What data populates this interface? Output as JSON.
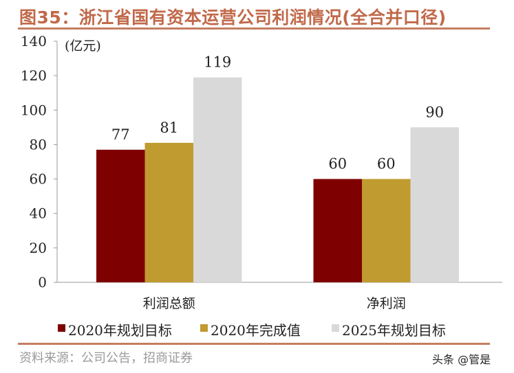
{
  "title": "图35：浙江省国有资本运营公司利润情况(全合并口径)",
  "source": "资料来源：公司公告，招商证券",
  "watermark": "头条 @管是",
  "chart_data": {
    "type": "bar",
    "title": "图35：浙江省国有资本运营公司利润情况(全合并口径)",
    "ylabel": "(亿元)",
    "ylim": [
      0,
      140
    ],
    "yticks": [
      0,
      20,
      40,
      60,
      80,
      100,
      120,
      140
    ],
    "categories": [
      "利润总额",
      "净利润"
    ],
    "series": [
      {
        "name": "2020年规划目标",
        "values": [
          77,
          60
        ],
        "color": "#7f0000"
      },
      {
        "name": "2020年完成值",
        "values": [
          81,
          60
        ],
        "color": "#bf9b30"
      },
      {
        "name": "2025年规划目标",
        "values": [
          119,
          90
        ],
        "color": "#d9d9d9"
      }
    ],
    "grid": false,
    "legend": "bottom"
  }
}
